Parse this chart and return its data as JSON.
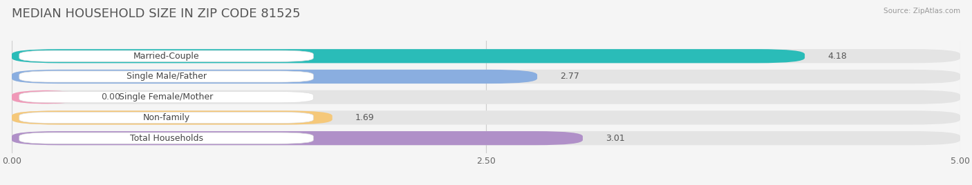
{
  "title": "MEDIAN HOUSEHOLD SIZE IN ZIP CODE 81525",
  "source": "Source: ZipAtlas.com",
  "categories": [
    "Married-Couple",
    "Single Male/Father",
    "Single Female/Mother",
    "Non-family",
    "Total Households"
  ],
  "values": [
    4.18,
    2.77,
    0.0,
    1.69,
    3.01
  ],
  "bar_colors": [
    "#2abcb8",
    "#8aaee0",
    "#f099b8",
    "#f5c87a",
    "#b090c8"
  ],
  "background_color": "#f5f5f5",
  "track_color": "#e4e4e4",
  "label_box_color": "#ffffff",
  "xlim_max": 5.0,
  "xticks": [
    0.0,
    2.5,
    5.0
  ],
  "xtick_labels": [
    "0.00",
    "2.50",
    "5.00"
  ],
  "title_fontsize": 13,
  "label_fontsize": 9,
  "value_fontsize": 9,
  "bar_height": 0.68,
  "bar_gap": 0.32
}
